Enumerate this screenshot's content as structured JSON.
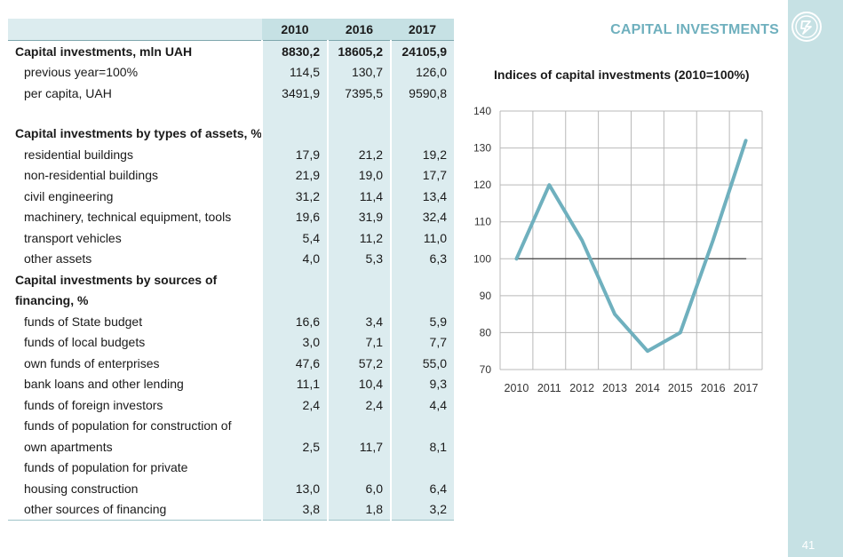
{
  "page": {
    "section_title": "CAPITAL INVESTMENTS",
    "page_number": "41"
  },
  "table": {
    "columns": [
      "2010",
      "2016",
      "2017"
    ],
    "rows": [
      {
        "label": "Capital investments, mln UAH",
        "values": [
          "8830,2",
          "18605,2",
          "24105,9"
        ],
        "style": "bold"
      },
      {
        "label": "previous year=100%",
        "values": [
          "114,5",
          "130,7",
          "126,0"
        ],
        "style": "indent"
      },
      {
        "label": "per capita, UAH",
        "values": [
          "3491,9",
          "7395,5",
          "9590,8"
        ],
        "style": "indent"
      },
      {
        "label": "",
        "values": [
          "",
          "",
          ""
        ],
        "style": "gap"
      },
      {
        "label": "Capital investments by types of assets, %",
        "values": [
          "",
          "",
          ""
        ],
        "style": "head"
      },
      {
        "label": "residential buildings",
        "values": [
          "17,9",
          "21,2",
          "19,2"
        ],
        "style": "indent"
      },
      {
        "label": "non-residential  buildings",
        "values": [
          "21,9",
          "19,0",
          "17,7"
        ],
        "style": "indent"
      },
      {
        "label": "civil engineering",
        "values": [
          "31,2",
          "11,4",
          "13,4"
        ],
        "style": "indent"
      },
      {
        "label": "machinery, technical equipment, tools",
        "values": [
          "19,6",
          "31,9",
          "32,4"
        ],
        "style": "indent"
      },
      {
        "label": "transport vehicles",
        "values": [
          "5,4",
          "11,2",
          "11,0"
        ],
        "style": "indent"
      },
      {
        "label": "other assets",
        "values": [
          "4,0",
          "5,3",
          "6,3"
        ],
        "style": "indent"
      },
      {
        "label": "Capital investments by sources of",
        "values": [
          "",
          "",
          ""
        ],
        "style": "head"
      },
      {
        "label": "financing, %",
        "values": [
          "",
          "",
          ""
        ],
        "style": "head"
      },
      {
        "label": "funds of State budget",
        "values": [
          "16,6",
          "3,4",
          "5,9"
        ],
        "style": "indent"
      },
      {
        "label": "funds of local budgets",
        "values": [
          "3,0",
          "7,1",
          "7,7"
        ],
        "style": "indent"
      },
      {
        "label": "own funds of enterprises",
        "values": [
          "47,6",
          "57,2",
          "55,0"
        ],
        "style": "indent"
      },
      {
        "label": "bank loans and other lending",
        "values": [
          "11,1",
          "10,4",
          "9,3"
        ],
        "style": "indent"
      },
      {
        "label": "funds of foreign investors",
        "values": [
          "2,4",
          "2,4",
          "4,4"
        ],
        "style": "indent"
      },
      {
        "label": "funds of population for construction of",
        "values": [
          "",
          "",
          ""
        ],
        "style": "indent"
      },
      {
        "label": "own apartments",
        "values": [
          "2,5",
          "11,7",
          "8,1"
        ],
        "style": "indent"
      },
      {
        "label": "funds of population for private",
        "values": [
          "",
          "",
          ""
        ],
        "style": "indent"
      },
      {
        "label": "housing construction",
        "values": [
          "13,0",
          "6,0",
          "6,4"
        ],
        "style": "indent"
      },
      {
        "label": "other sources of financing",
        "values": [
          "3,8",
          "1,8",
          "3,2"
        ],
        "style": "indent last"
      }
    ]
  },
  "chart_data": {
    "type": "line",
    "title": "Indices of capital investments (2010=100%)",
    "x": [
      "2010",
      "2011",
      "2012",
      "2013",
      "2014",
      "2015",
      "2016",
      "2017"
    ],
    "series": [
      {
        "values": [
          100,
          120,
          105,
          85,
          75,
          80,
          105,
          132
        ],
        "color": "#6fb0be"
      },
      {
        "values": [
          100,
          100,
          100,
          100,
          100,
          100,
          100,
          100
        ],
        "color": "#404040"
      }
    ],
    "yticks": [
      70,
      80,
      90,
      100,
      110,
      120,
      130,
      140
    ],
    "ylim": [
      70,
      140
    ],
    "grid": true
  }
}
